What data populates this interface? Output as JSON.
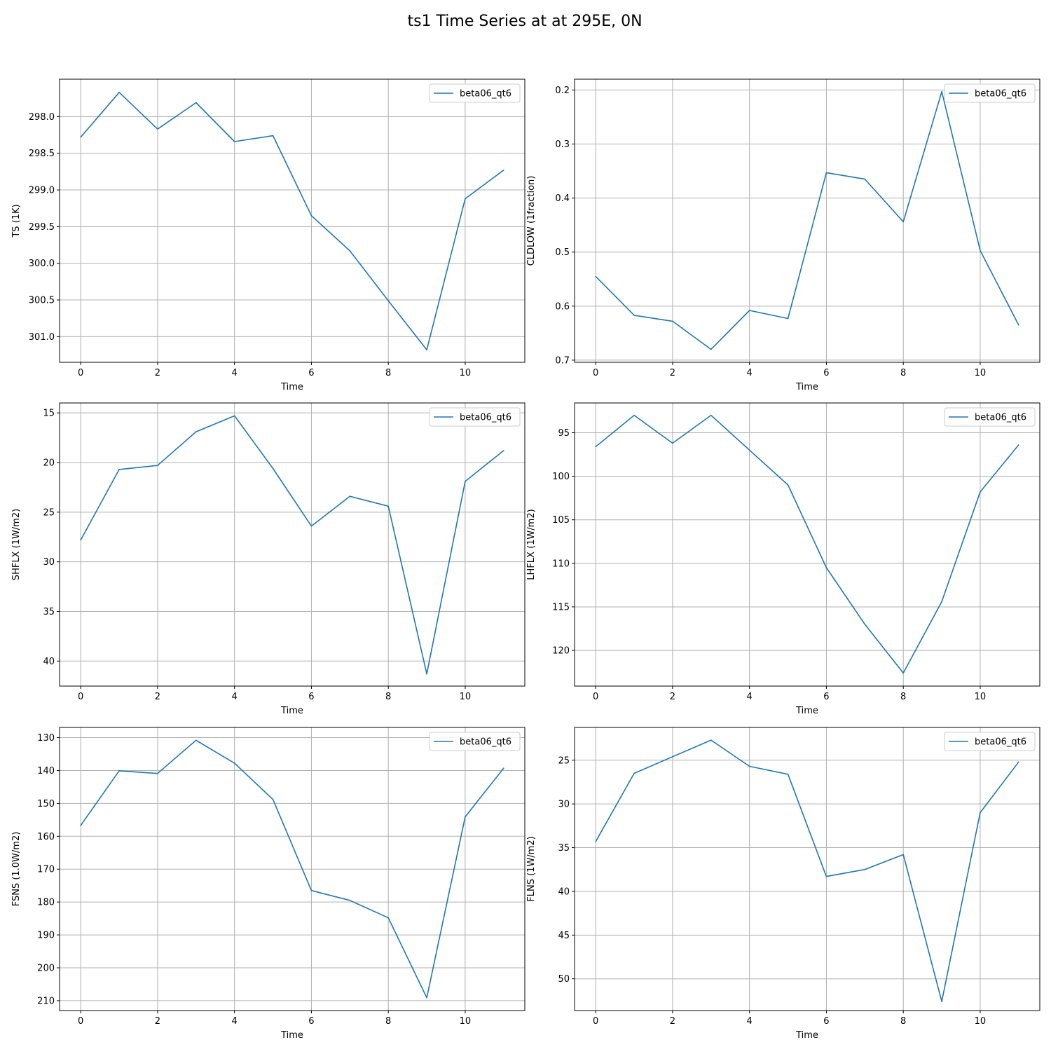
{
  "figure_title": "ts1 Time Series at at 295E, 0N",
  "colors": {
    "series": "#1f77b4",
    "grid": "#b0b0b0",
    "axes": "#000000",
    "legend_border": "#cccccc"
  },
  "chart_data": [
    {
      "type": "line",
      "xlabel": "Time",
      "ylabel": "TS (1K)",
      "y_inverted": true,
      "ylim": [
        301.35,
        297.49
      ],
      "xlim": [
        -0.55,
        11.55
      ],
      "x_ticks": [
        0,
        2,
        4,
        6,
        8,
        10
      ],
      "y_ticks": [
        298.0,
        298.5,
        299.0,
        299.5,
        300.0,
        300.5,
        301.0
      ],
      "y_tick_labels": [
        "298.0",
        "298.5",
        "299.0",
        "299.5",
        "300.0",
        "300.5",
        "301.0"
      ],
      "grid": true,
      "legend_position": "upper right",
      "x": [
        0,
        1,
        2,
        3,
        4,
        5,
        6,
        7,
        8,
        9,
        10,
        11
      ],
      "series": [
        {
          "name": "beta06_qt6",
          "values": [
            298.28,
            297.67,
            298.17,
            297.81,
            298.34,
            298.26,
            299.35,
            299.83,
            300.51,
            301.18,
            299.12,
            298.73
          ]
        }
      ]
    },
    {
      "type": "line",
      "xlabel": "Time",
      "ylabel": "CLDLOW (1fraction)",
      "y_inverted": true,
      "ylim": [
        0.704,
        0.18
      ],
      "xlim": [
        -0.55,
        11.55
      ],
      "x_ticks": [
        0,
        2,
        4,
        6,
        8,
        10
      ],
      "y_ticks": [
        0.2,
        0.3,
        0.4,
        0.5,
        0.6,
        0.7
      ],
      "y_tick_labels": [
        "0.2",
        "0.3",
        "0.4",
        "0.5",
        "0.6",
        "0.7"
      ],
      "grid": true,
      "legend_position": "upper right",
      "x": [
        0,
        1,
        2,
        3,
        4,
        5,
        6,
        7,
        8,
        9,
        10,
        11
      ],
      "series": [
        {
          "name": "beta06_qt6",
          "values": [
            0.545,
            0.617,
            0.628,
            0.68,
            0.608,
            0.623,
            0.353,
            0.365,
            0.444,
            0.203,
            0.497,
            0.635
          ]
        }
      ]
    },
    {
      "type": "line",
      "xlabel": "Time",
      "ylabel": "SHFLX (1W/m2)",
      "y_inverted": true,
      "ylim": [
        42.52,
        14.0
      ],
      "xlim": [
        -0.55,
        11.55
      ],
      "x_ticks": [
        0,
        2,
        4,
        6,
        8,
        10
      ],
      "y_ticks": [
        15,
        20,
        25,
        30,
        35,
        40
      ],
      "y_tick_labels": [
        "15",
        "20",
        "25",
        "30",
        "35",
        "40"
      ],
      "grid": true,
      "legend_position": "upper right",
      "x": [
        0,
        1,
        2,
        3,
        4,
        5,
        6,
        7,
        8,
        9,
        10,
        11
      ],
      "series": [
        {
          "name": "beta06_qt6",
          "values": [
            27.8,
            20.7,
            20.3,
            16.9,
            15.3,
            20.6,
            26.4,
            23.4,
            24.4,
            41.3,
            21.9,
            18.8
          ]
        }
      ]
    },
    {
      "type": "line",
      "xlabel": "Time",
      "ylabel": "LHFLX (1W/m2)",
      "y_inverted": true,
      "ylim": [
        124.1,
        91.58
      ],
      "xlim": [
        -0.55,
        11.55
      ],
      "x_ticks": [
        0,
        2,
        4,
        6,
        8,
        10
      ],
      "y_ticks": [
        95,
        100,
        105,
        110,
        115,
        120
      ],
      "y_tick_labels": [
        "95",
        "100",
        "105",
        "110",
        "115",
        "120"
      ],
      "grid": true,
      "legend_position": "upper right",
      "x": [
        0,
        1,
        2,
        3,
        4,
        5,
        6,
        7,
        8,
        9,
        10,
        11
      ],
      "series": [
        {
          "name": "beta06_qt6",
          "values": [
            96.6,
            93.0,
            96.2,
            93.0,
            97.0,
            101.0,
            110.5,
            117.0,
            122.6,
            114.4,
            101.8,
            96.4
          ]
        }
      ]
    },
    {
      "type": "line",
      "xlabel": "Time",
      "ylabel": "FSNS (1.0W/m2)",
      "y_inverted": true,
      "ylim": [
        213.0,
        126.9
      ],
      "xlim": [
        -0.55,
        11.55
      ],
      "x_ticks": [
        0,
        2,
        4,
        6,
        8,
        10
      ],
      "y_ticks": [
        130,
        140,
        150,
        160,
        170,
        180,
        190,
        200,
        210
      ],
      "y_tick_labels": [
        "130",
        "140",
        "150",
        "160",
        "170",
        "180",
        "190",
        "200",
        "210"
      ],
      "grid": true,
      "legend_position": "upper right",
      "x": [
        0,
        1,
        2,
        3,
        4,
        5,
        6,
        7,
        8,
        9,
        10,
        11
      ],
      "series": [
        {
          "name": "beta06_qt6",
          "values": [
            156.7,
            140.1,
            140.9,
            130.8,
            137.8,
            148.8,
            176.5,
            179.5,
            184.8,
            209.1,
            154.1,
            139.3
          ]
        }
      ]
    },
    {
      "type": "line",
      "xlabel": "Time",
      "ylabel": "FLNS (1W/m2)",
      "y_inverted": true,
      "ylim": [
        53.63,
        21.25
      ],
      "xlim": [
        -0.55,
        11.55
      ],
      "x_ticks": [
        0,
        2,
        4,
        6,
        8,
        10
      ],
      "y_ticks": [
        25,
        30,
        35,
        40,
        45,
        50
      ],
      "y_tick_labels": [
        "25",
        "30",
        "35",
        "40",
        "45",
        "50"
      ],
      "grid": true,
      "legend_position": "upper right",
      "x": [
        0,
        1,
        2,
        3,
        4,
        5,
        6,
        7,
        8,
        9,
        10,
        11
      ],
      "series": [
        {
          "name": "beta06_qt6",
          "values": [
            34.3,
            26.5,
            24.6,
            22.7,
            25.7,
            26.6,
            38.3,
            37.5,
            35.8,
            52.6,
            31.0,
            25.2
          ]
        }
      ]
    }
  ]
}
